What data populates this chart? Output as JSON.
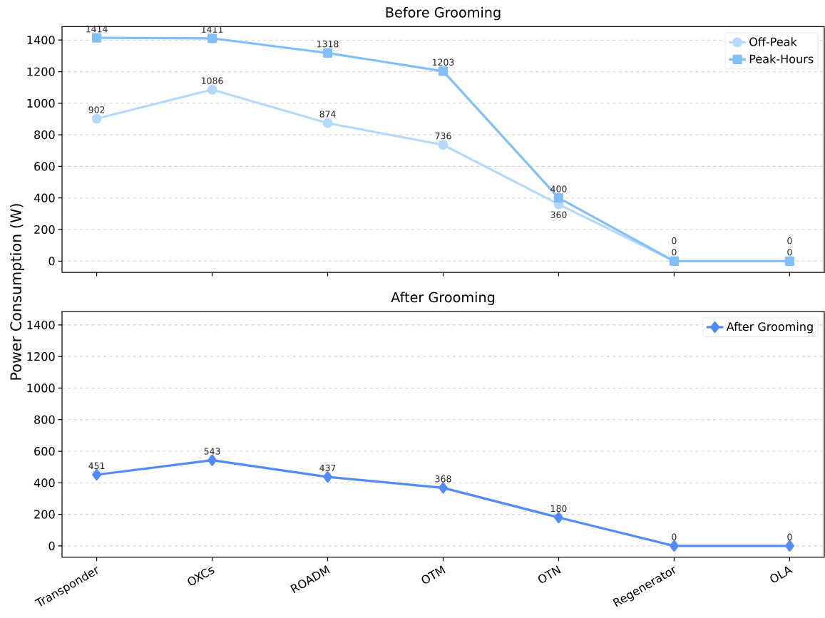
{
  "chart_data": [
    {
      "type": "line",
      "title": "Before Grooming",
      "ylabel": "Power Consumption (W)",
      "categories": [
        null,
        null,
        null,
        null,
        null,
        null,
        null
      ],
      "series": [
        {
          "name": "Off-Peak",
          "color": "#b3dafc",
          "marker": "circle",
          "values": [
            902,
            1086,
            874,
            736,
            360,
            0,
            0
          ]
        },
        {
          "name": "Peak-Hours",
          "color": "#80bffc",
          "marker": "square",
          "values": [
            1414,
            1411,
            1318,
            1203,
            400,
            0,
            0
          ]
        }
      ],
      "ylim": [
        -71,
        1485
      ],
      "yticks": [
        0,
        200,
        400,
        600,
        800,
        1000,
        1200,
        1400
      ],
      "grid": "y",
      "legend": "top right",
      "data_labels": true,
      "line_style": "solid"
    },
    {
      "type": "line",
      "title": "After Grooming",
      "categories": [
        "Transponder",
        "OXCs",
        "ROADM",
        "OTM",
        "OTN",
        "Regenerator",
        "OLA"
      ],
      "series": [
        {
          "name": "After Grooming",
          "color": "#4f8bfa",
          "marker": "diamond",
          "values": [
            451,
            543,
            437,
            368,
            180,
            0,
            0
          ]
        }
      ],
      "ylim": [
        -71,
        1485
      ],
      "yticks": [
        0,
        200,
        400,
        600,
        800,
        1000,
        1200,
        1400
      ],
      "grid": "y",
      "legend": "top right",
      "data_labels": true,
      "line_style": "solid"
    }
  ]
}
